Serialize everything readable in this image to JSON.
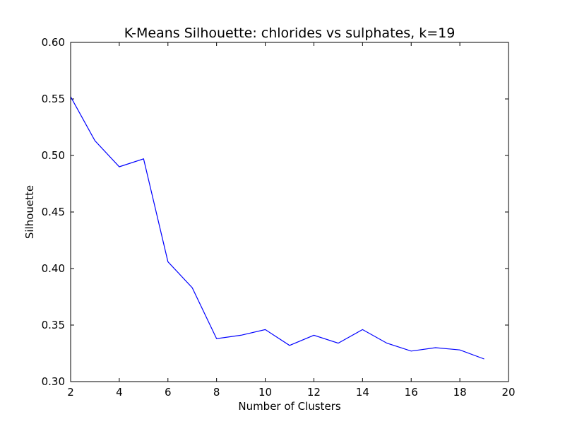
{
  "chart_data": {
    "type": "line",
    "title": "K-Means Silhouette: chlorides vs sulphates, k=19",
    "xlabel": "Number of Clusters",
    "ylabel": "Silhouette",
    "xlim": [
      2,
      20
    ],
    "ylim": [
      0.3,
      0.6
    ],
    "xticks": [
      "2",
      "4",
      "6",
      "8",
      "10",
      "12",
      "14",
      "16",
      "18",
      "20"
    ],
    "yticks": [
      "0.30",
      "0.35",
      "0.40",
      "0.45",
      "0.50",
      "0.55",
      "0.60"
    ],
    "grid": false,
    "series": [
      {
        "color": "#0000ff",
        "x": [
          2,
          3,
          4,
          5,
          6,
          7,
          8,
          9,
          10,
          11,
          12,
          13,
          14,
          15,
          16,
          17,
          18,
          19
        ],
        "y": [
          0.552,
          0.513,
          0.49,
          0.497,
          0.406,
          0.383,
          0.338,
          0.341,
          0.346,
          0.332,
          0.341,
          0.334,
          0.346,
          0.334,
          0.327,
          0.33,
          0.328,
          0.32
        ]
      }
    ]
  }
}
